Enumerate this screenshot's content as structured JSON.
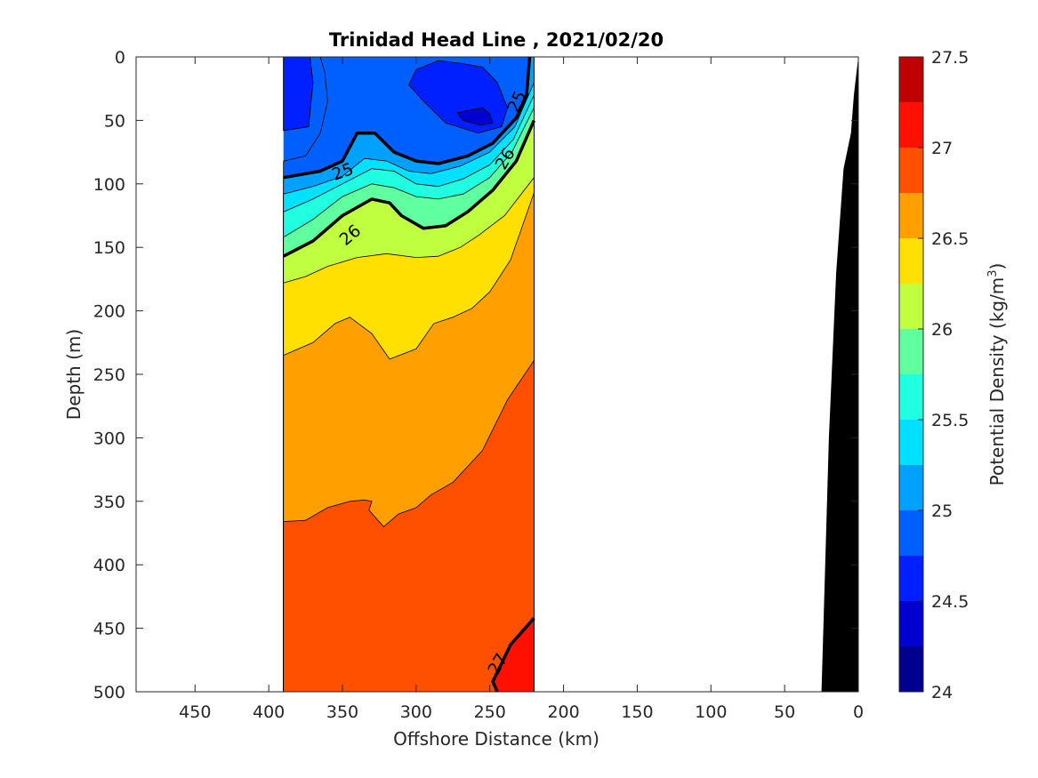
{
  "chart_data": {
    "type": "contour",
    "title": "Trinidad Head Line , 2021/02/20",
    "xlabel": "Offshore Distance (km)",
    "ylabel": "Depth (m)",
    "x_reversed": true,
    "y_reversed": true,
    "xlim": [
      0,
      490
    ],
    "ylim": [
      0,
      500
    ],
    "x_ticks": [
      450,
      400,
      350,
      300,
      250,
      200,
      150,
      100,
      50,
      0
    ],
    "y_ticks": [
      0,
      50,
      100,
      150,
      200,
      250,
      300,
      350,
      400,
      450,
      500
    ],
    "data_extent_x": [
      220,
      390
    ],
    "colorbar": {
      "label_main": "Potential Density (kg/m",
      "label_sup": "3",
      "label_end": ")",
      "range": [
        24,
        27.5
      ],
      "ticks": [
        24,
        24.5,
        25,
        25.5,
        26,
        26.5,
        27,
        27.5
      ],
      "tick_labels": [
        "24",
        "24.5",
        "25",
        "25.5",
        "26",
        "26.5",
        "27",
        "27.5"
      ],
      "levels": [
        24,
        24.25,
        24.5,
        24.75,
        25,
        25.25,
        25.5,
        25.75,
        26,
        26.25,
        26.5,
        26.75,
        27,
        27.25
      ],
      "colors": [
        "#00008F",
        "#0000D0",
        "#0020FF",
        "#0060FF",
        "#00A0FF",
        "#00E0FF",
        "#20FFDF",
        "#60FF9F",
        "#BFFF40",
        "#FFE000",
        "#FFA000",
        "#FF5000",
        "#FF1000",
        "#C00000"
      ]
    },
    "contour_labels": [
      "25",
      "25",
      "26",
      "26",
      "27"
    ],
    "regions": [
      {
        "level": 27.0,
        "points": [
          [
            220,
            442
          ],
          [
            220,
            500
          ],
          [
            245,
            500
          ],
          [
            248,
            492
          ],
          [
            236,
            463
          ]
        ]
      },
      {
        "level": 26.75,
        "points": [
          [
            390,
            366
          ],
          [
            375,
            365
          ],
          [
            360,
            355
          ],
          [
            345,
            350
          ],
          [
            335,
            349
          ],
          [
            330,
            350
          ],
          [
            332,
            357
          ],
          [
            322,
            370
          ],
          [
            312,
            360
          ],
          [
            300,
            355
          ],
          [
            290,
            345
          ],
          [
            275,
            335
          ],
          [
            255,
            310
          ],
          [
            238,
            270
          ],
          [
            220,
            239
          ],
          [
            220,
            500
          ],
          [
            390,
            500
          ]
        ]
      },
      {
        "level": 26.5,
        "points": [
          [
            390,
            235
          ],
          [
            370,
            225
          ],
          [
            355,
            210
          ],
          [
            345,
            205
          ],
          [
            330,
            218
          ],
          [
            318,
            238
          ],
          [
            300,
            230
          ],
          [
            288,
            210
          ],
          [
            275,
            205
          ],
          [
            262,
            198
          ],
          [
            250,
            185
          ],
          [
            236,
            160
          ],
          [
            220,
            107
          ],
          [
            220,
            500
          ],
          [
            390,
            500
          ]
        ]
      },
      {
        "level": 26.25,
        "points": [
          [
            390,
            178
          ],
          [
            375,
            173
          ],
          [
            360,
            165
          ],
          [
            340,
            158
          ],
          [
            320,
            155
          ],
          [
            300,
            158
          ],
          [
            285,
            157
          ],
          [
            270,
            150
          ],
          [
            257,
            140
          ],
          [
            240,
            125
          ],
          [
            220,
            95
          ],
          [
            220,
            500
          ],
          [
            390,
            500
          ]
        ]
      },
      {
        "level": 26.0,
        "points": [
          [
            390,
            157
          ],
          [
            370,
            145
          ],
          [
            350,
            125
          ],
          [
            330,
            112
          ],
          [
            318,
            115
          ],
          [
            310,
            125
          ],
          [
            295,
            135
          ],
          [
            280,
            133
          ],
          [
            265,
            122
          ],
          [
            248,
            105
          ],
          [
            232,
            82
          ],
          [
            220,
            50
          ],
          [
            220,
            500
          ],
          [
            390,
            500
          ]
        ]
      },
      {
        "level": 25.75,
        "points": [
          [
            390,
            142
          ],
          [
            370,
            128
          ],
          [
            350,
            110
          ],
          [
            330,
            100
          ],
          [
            315,
            103
          ],
          [
            300,
            110
          ],
          [
            285,
            112
          ],
          [
            268,
            108
          ],
          [
            250,
            95
          ],
          [
            235,
            75
          ],
          [
            220,
            40
          ],
          [
            220,
            500
          ],
          [
            390,
            500
          ]
        ]
      },
      {
        "level": 25.5,
        "points": [
          [
            390,
            122
          ],
          [
            370,
            112
          ],
          [
            350,
            100
          ],
          [
            330,
            88
          ],
          [
            315,
            90
          ],
          [
            300,
            100
          ],
          [
            285,
            102
          ],
          [
            268,
            96
          ],
          [
            250,
            85
          ],
          [
            234,
            65
          ],
          [
            220,
            30
          ],
          [
            220,
            500
          ],
          [
            390,
            500
          ]
        ]
      },
      {
        "level": 25.25,
        "points": [
          [
            390,
            108
          ],
          [
            370,
            102
          ],
          [
            350,
            94
          ],
          [
            335,
            80
          ],
          [
            320,
            82
          ],
          [
            305,
            90
          ],
          [
            290,
            92
          ],
          [
            270,
            86
          ],
          [
            250,
            75
          ],
          [
            233,
            55
          ],
          [
            220,
            20
          ],
          [
            220,
            500
          ],
          [
            390,
            500
          ]
        ]
      },
      {
        "level": 25.0,
        "points": [
          [
            390,
            95
          ],
          [
            365,
            90
          ],
          [
            350,
            82
          ],
          [
            340,
            60
          ],
          [
            328,
            60
          ],
          [
            315,
            75
          ],
          [
            300,
            82
          ],
          [
            285,
            84
          ],
          [
            265,
            78
          ],
          [
            248,
            68
          ],
          [
            232,
            48
          ],
          [
            225,
            30
          ],
          [
            223,
            0
          ],
          [
            220,
            0
          ],
          [
            220,
            500
          ],
          [
            390,
            500
          ]
        ]
      },
      {
        "level": 24.75,
        "points": [
          [
            390,
            82
          ],
          [
            375,
            78
          ],
          [
            365,
            60
          ],
          [
            360,
            35
          ],
          [
            362,
            12
          ],
          [
            365,
            0
          ],
          [
            220,
            0
          ],
          [
            220,
            500
          ],
          [
            390,
            500
          ]
        ]
      },
      {
        "level": 24.75,
        "points": [
          [
            390,
            0
          ],
          [
            372,
            0
          ],
          [
            370,
            20
          ],
          [
            373,
            55
          ],
          [
            390,
            58
          ]
        ]
      },
      {
        "level": 24.5,
        "points": [
          [
            300,
            10
          ],
          [
            285,
            3
          ],
          [
            270,
            5
          ],
          [
            255,
            8
          ],
          [
            245,
            20
          ],
          [
            238,
            40
          ],
          [
            242,
            55
          ],
          [
            258,
            60
          ],
          [
            280,
            52
          ],
          [
            295,
            35
          ],
          [
            305,
            22
          ]
        ]
      },
      {
        "level": 24.25,
        "points": [
          [
            255,
            40
          ],
          [
            250,
            45
          ],
          [
            248,
            52
          ],
          [
            256,
            54
          ],
          [
            268,
            50
          ],
          [
            272,
            44
          ]
        ]
      }
    ],
    "bold_contours": [
      {
        "level": 25,
        "points": [
          [
            390,
            95
          ],
          [
            365,
            90
          ],
          [
            350,
            82
          ],
          [
            340,
            60
          ],
          [
            328,
            60
          ],
          [
            315,
            75
          ],
          [
            300,
            82
          ],
          [
            285,
            84
          ],
          [
            265,
            78
          ],
          [
            248,
            68
          ],
          [
            232,
            48
          ],
          [
            225,
            30
          ],
          [
            223,
            0
          ]
        ]
      },
      {
        "level": 26,
        "points": [
          [
            390,
            157
          ],
          [
            370,
            145
          ],
          [
            350,
            125
          ],
          [
            330,
            112
          ],
          [
            318,
            115
          ],
          [
            310,
            125
          ],
          [
            295,
            135
          ],
          [
            280,
            133
          ],
          [
            265,
            122
          ],
          [
            248,
            105
          ],
          [
            232,
            82
          ],
          [
            220,
            50
          ]
        ]
      },
      {
        "level": 27,
        "points": [
          [
            220,
            442
          ],
          [
            236,
            463
          ],
          [
            248,
            492
          ],
          [
            245,
            500
          ]
        ]
      }
    ],
    "bathymetry": {
      "color": "#000000",
      "points": [
        [
          0,
          0
        ],
        [
          3,
          30
        ],
        [
          5,
          60
        ],
        [
          10,
          88
        ],
        [
          15,
          170
        ],
        [
          20,
          300
        ],
        [
          25,
          500
        ],
        [
          0,
          500
        ]
      ]
    }
  }
}
